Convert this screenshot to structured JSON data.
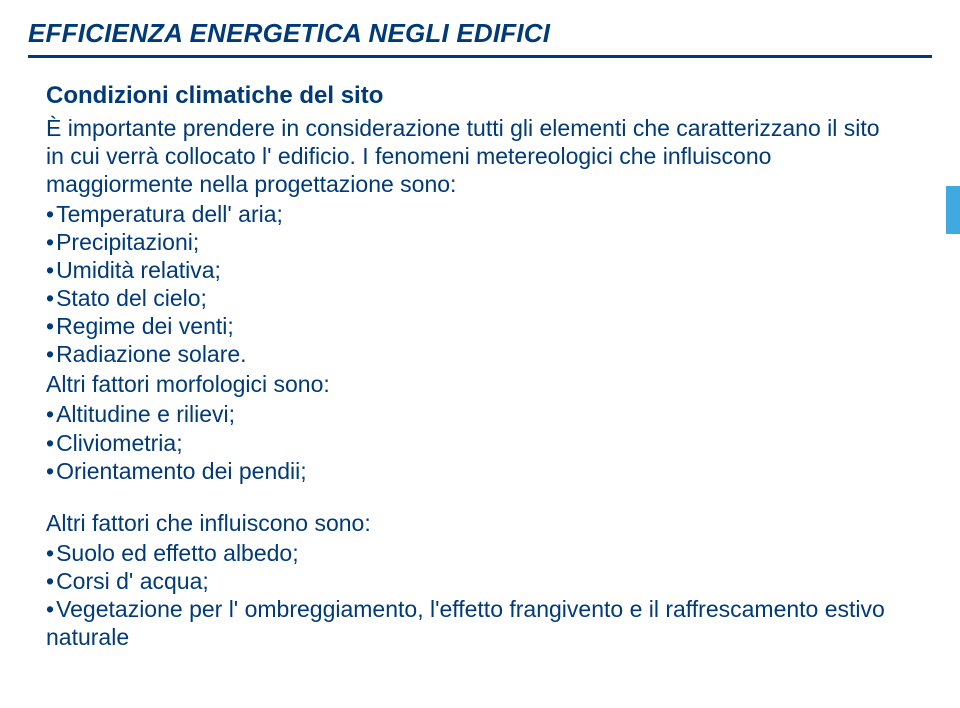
{
  "colors": {
    "text": "#003a78",
    "rule": "#003a78",
    "accent": "#3fa9e0",
    "background": "#ffffff"
  },
  "typography": {
    "title_fontsize": 26,
    "subtitle_fontsize": 24,
    "body_fontsize": 23,
    "line_height": 1.22,
    "font_family": "Arial"
  },
  "header": {
    "title": "EFFICIENZA ENERGETICA NEGLI EDIFICI"
  },
  "section1": {
    "subtitle": "Condizioni climatiche del sito",
    "intro": "È importante prendere in considerazione tutti gli elementi che caratterizzano il sito in cui verrà collocato l' edificio. I fenomeni metereologici che influiscono maggiormente nella progettazione sono:",
    "bullets": [
      "Temperatura dell' aria;",
      "Precipitazioni;",
      "Umidità relativa;",
      "Stato del cielo;",
      "Regime dei venti;",
      "Radiazione solare."
    ],
    "morph_intro": "Altri fattori morfologici sono:",
    "morph_bullets": [
      "Altitudine e rilievi;",
      "Cliviometria;",
      "Orientamento dei pendii;"
    ]
  },
  "section2": {
    "intro": "Altri fattori che influiscono sono:",
    "bullets": [
      "Suolo ed effetto albedo;",
      "Corsi d' acqua;",
      "Vegetazione per l' ombreggiamento, l'effetto frangivento e il raffrescamento estivo naturale"
    ]
  }
}
